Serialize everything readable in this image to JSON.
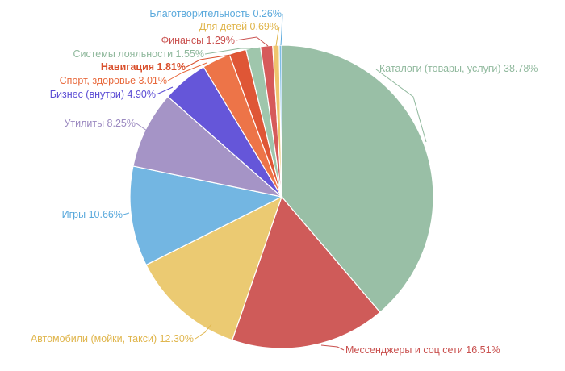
{
  "chart_data": {
    "type": "pie",
    "title": "",
    "slices": [
      {
        "label": "Каталоги (товары, услуги)",
        "value": 38.78,
        "value_label": "38.78%",
        "color": "#99bfa6",
        "label_color": "#8fb89c"
      },
      {
        "label": "Мессенджеры и соц сети",
        "value": 16.51,
        "value_label": "16.51%",
        "color": "#cf5b59",
        "label_color": "#c9504e"
      },
      {
        "label": "Автомобили (мойки, такси)",
        "value": 12.3,
        "value_label": "12.30%",
        "color": "#ebca72",
        "label_color": "#e0b64e"
      },
      {
        "label": "Игры",
        "value": 10.66,
        "value_label": "10.66%",
        "color": "#73b6e2",
        "label_color": "#5aa9dc"
      },
      {
        "label": "Утилиты",
        "value": 8.25,
        "value_label": "8.25%",
        "color": "#a594c6",
        "label_color": "#9b89c0"
      },
      {
        "label": "Бизнес (внутри)",
        "value": 4.9,
        "value_label": "4.90%",
        "color": "#6556d9",
        "label_color": "#5a4bd4"
      },
      {
        "label": "Спорт, здоровье",
        "value": 3.01,
        "value_label": "3.01%",
        "color": "#ed7448",
        "label_color": "#e8693c"
      },
      {
        "label": "Навигация",
        "value": 1.81,
        "value_label": "1.81%",
        "color": "#df5636",
        "label_color": "#d9502d",
        "bold": true
      },
      {
        "label": "Системы лояльности",
        "value": 1.55,
        "value_label": "1.55%",
        "color": "#9fc6ac",
        "label_color": "#8fb89c"
      },
      {
        "label": "Финансы",
        "value": 1.29,
        "value_label": "1.29%",
        "color": "#d65a5a",
        "label_color": "#c9504e"
      },
      {
        "label": "Для детей",
        "value": 0.69,
        "value_label": "0.69%",
        "color": "#efc56e",
        "label_color": "#e0b64e"
      },
      {
        "label": "Благотворительность",
        "value": 0.26,
        "value_label": "0.26%",
        "color": "#7fbde6",
        "label_color": "#5aa9dc"
      }
    ],
    "start_angle_deg": 0,
    "direction": "clockwise",
    "legend": "none"
  }
}
